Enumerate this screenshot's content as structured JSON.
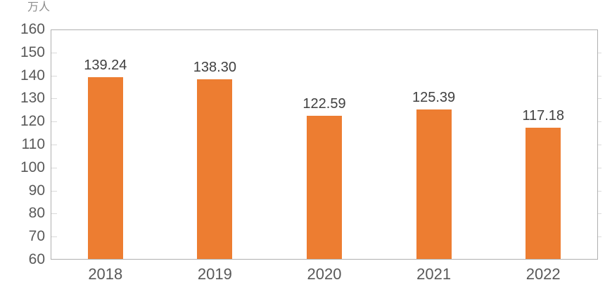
{
  "chart_data": {
    "type": "bar",
    "title": "",
    "unit_label": "万人",
    "categories": [
      "2018",
      "2019",
      "2020",
      "2021",
      "2022"
    ],
    "values": [
      139.24,
      138.3,
      122.59,
      125.39,
      117.18
    ],
    "value_labels": [
      "139.24",
      "138.30",
      "122.59",
      "125.39",
      "117.18"
    ],
    "xlabel": "",
    "ylabel": "万人",
    "ylim": [
      60,
      160
    ],
    "ytick_step": 10,
    "yticks": [
      60,
      70,
      80,
      90,
      100,
      110,
      120,
      130,
      140,
      150,
      160
    ],
    "grid": false,
    "legend_position": "none",
    "colors": {
      "bar": "#ED7D31",
      "axis_line": "#AFAFAF",
      "tick_mark": "#D9D9D9",
      "tick_mark_right": "#DCDCDC",
      "axis_text": "#595959",
      "value_text": "#404040",
      "unit_text": "#8C8C8C"
    }
  }
}
